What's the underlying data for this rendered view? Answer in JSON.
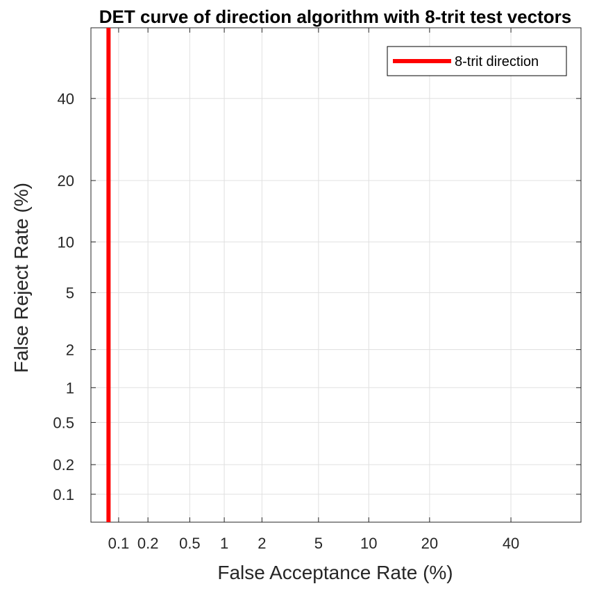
{
  "chart_data": {
    "type": "line",
    "title": "DET curve of direction algorithm with 8-trit test vectors",
    "xlabel": "False Acceptance Rate (%)",
    "ylabel": "False Reject Rate (%)",
    "scale": "normal-deviate (probit) on both axes",
    "xlim": [
      0.05,
      60
    ],
    "ylim": [
      0.05,
      60
    ],
    "x_ticks": [
      0.1,
      0.2,
      0.5,
      1,
      2,
      5,
      10,
      20,
      40
    ],
    "x_tick_labels": [
      "0.1",
      "0.2",
      "0.5",
      "1",
      "2",
      "5",
      "10",
      "20",
      "40"
    ],
    "y_ticks": [
      0.1,
      0.2,
      0.5,
      1,
      2,
      5,
      10,
      20,
      40
    ],
    "y_tick_labels": [
      "0.1",
      "0.2",
      "0.5",
      "1",
      "2",
      "5",
      "10",
      "20",
      "40"
    ],
    "grid": true,
    "legend_position": "top-right",
    "series": [
      {
        "name": "8-trit direction",
        "color": "#ff0000",
        "x": [
          0.078,
          0.078
        ],
        "y": [
          0.05,
          60
        ]
      }
    ]
  },
  "colors": {
    "series": "#ff0000",
    "grid": "#e0e0e0",
    "axes": "#262626"
  }
}
